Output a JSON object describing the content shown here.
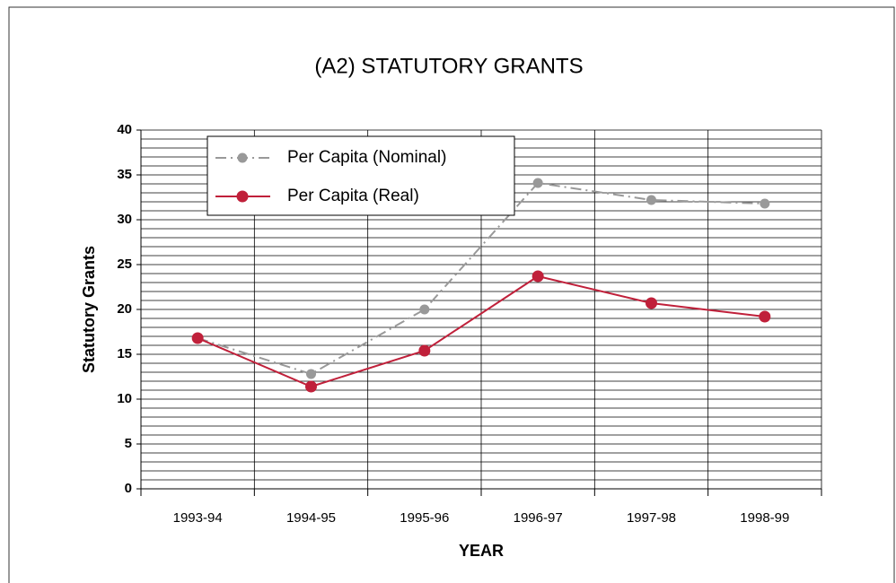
{
  "chart_data": {
    "type": "line",
    "title": "(A2) STATUTORY GRANTS",
    "x_label": "YEAR",
    "y_label": "Statutory Grants",
    "categories": [
      "1993-94",
      "1994-95",
      "1995-96",
      "1996-97",
      "1997-98",
      "1998-99"
    ],
    "series": [
      {
        "name": "Per Capita (Nominal)",
        "color": "#999999",
        "dashed": true,
        "values": [
          16.8,
          12.8,
          20.0,
          34.1,
          32.2,
          31.8
        ]
      },
      {
        "name": "Per Capita (Real)",
        "color": "#c0203a",
        "dashed": false,
        "values": [
          16.8,
          11.4,
          15.4,
          23.7,
          20.7,
          19.2
        ]
      }
    ],
    "ylim": [
      0,
      40
    ],
    "yticks": [
      0,
      5,
      10,
      15,
      20,
      25,
      30,
      35,
      40
    ],
    "grid": true,
    "legend": "upper left"
  }
}
